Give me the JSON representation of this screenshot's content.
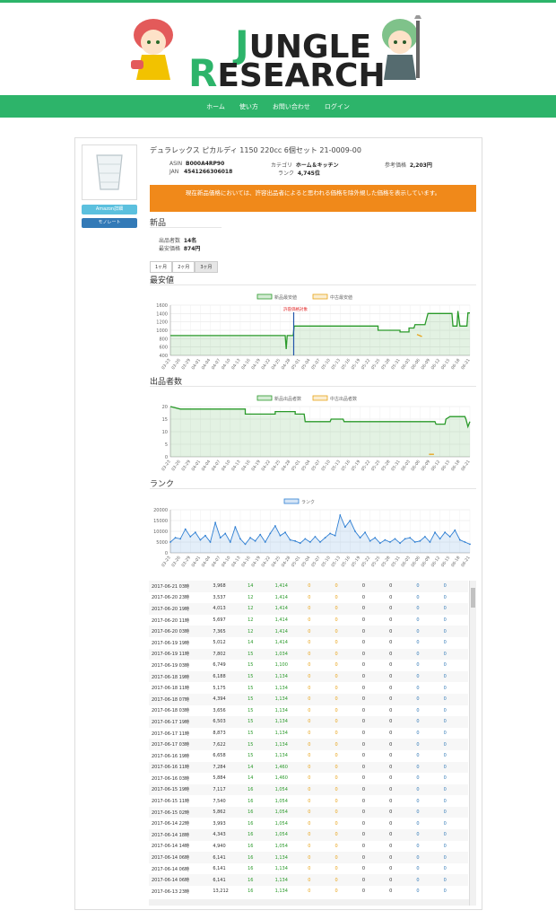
{
  "logo": {
    "line1_initial": "J",
    "line1_rest": "UNGLE",
    "line2_initial": "R",
    "line2_rest": "ESEARCH"
  },
  "nav": [
    "ホーム",
    "使い方",
    "お問い合わせ",
    "ログイン"
  ],
  "product": {
    "title": "デュラレックス ピカルディ 1150 220cc 6個セット 21-0009-00",
    "asin_label": "ASIN",
    "asin": "B000A4RP90",
    "jan_label": "JAN",
    "jan": "4541266306018",
    "category_label": "カテゴリ",
    "category": "ホーム＆キッチン",
    "rank_label": "ランク",
    "rank": "4,745位",
    "ref_price_label": "参考価格",
    "ref_price": "2,203円",
    "amazon_button": "Amazon詳細",
    "monorate_button": "モノレート"
  },
  "alert": "現在新品価格においては、許容出品者によると思われる価格を除外規した価格を表示しています。",
  "new_section": {
    "heading": "新品",
    "seller_count_label": "出品者数",
    "seller_count": "14名",
    "min_price_label": "最安価格",
    "min_price": "874円"
  },
  "tabs": [
    "1ヶ月",
    "2ヶ月",
    "3ヶ月"
  ],
  "active_tab": "3ヶ月",
  "sections": {
    "price": "最安値",
    "sellers": "出品者数",
    "rank": "ランク"
  },
  "colors": {
    "brand": "#2db46a",
    "alert": "#f0891a",
    "new": "#2a9a2a",
    "used": "#e8a317",
    "rank": "#2f7fd3"
  },
  "chart_data": [
    {
      "type": "line",
      "title": "",
      "legend": [
        "新品最安値",
        "中古最安値"
      ],
      "annotation": "許容価格対象",
      "yticks": [
        400,
        600,
        800,
        1000,
        1200,
        1400,
        1600
      ],
      "ylim": [
        400,
        1600
      ],
      "xticks": [
        "03-23",
        "03-26",
        "03-29",
        "04-01",
        "04-04",
        "04-07",
        "04-10",
        "04-13",
        "04-16",
        "04-19",
        "04-22",
        "04-25",
        "04-28",
        "05-01",
        "05-04",
        "05-07",
        "05-10",
        "05-13",
        "05-16",
        "05-19",
        "05-22",
        "05-25",
        "05-28",
        "05-31",
        "06-03",
        "06-06",
        "06-09",
        "06-12",
        "06-15",
        "06-18",
        "06-21"
      ],
      "series": [
        {
          "name": "新品最安値",
          "points": [
            [
              0,
              874
            ],
            [
              11.5,
              874
            ],
            [
              11.6,
              550
            ],
            [
              11.7,
              874
            ],
            [
              12.3,
              874
            ],
            [
              12.4,
              1100
            ],
            [
              19,
              1100
            ],
            [
              20.8,
              1100
            ],
            [
              20.8,
              1000
            ],
            [
              23,
              1000
            ],
            [
              23,
              960
            ],
            [
              23.9,
              960
            ],
            [
              23.9,
              1054
            ],
            [
              24.4,
              1054
            ],
            [
              24.5,
              1134
            ],
            [
              25.5,
              1134
            ],
            [
              25.8,
              1400
            ],
            [
              28.2,
              1400
            ],
            [
              28.3,
              1100
            ],
            [
              28.7,
              1100
            ],
            [
              28.8,
              1460
            ],
            [
              29,
              1100
            ],
            [
              29.7,
              1100
            ],
            [
              29.8,
              1414
            ],
            [
              30,
              1414
            ]
          ]
        },
        {
          "name": "中古最安値",
          "points": [
            [
              24.7,
              900
            ],
            [
              25.2,
              850
            ]
          ]
        }
      ]
    },
    {
      "type": "line",
      "title": "",
      "legend": [
        "新品出品者数",
        "中古出品者数"
      ],
      "yticks": [
        0,
        5,
        10,
        15,
        20
      ],
      "ylim": [
        0,
        20
      ],
      "series": [
        {
          "name": "新品出品者数",
          "points": [
            [
              0,
              20
            ],
            [
              1,
              19
            ],
            [
              7.5,
              19
            ],
            [
              7.5,
              17
            ],
            [
              10.5,
              17
            ],
            [
              10.5,
              18
            ],
            [
              12.5,
              18
            ],
            [
              12.5,
              17
            ],
            [
              13.4,
              17
            ],
            [
              13.5,
              14
            ],
            [
              16,
              14
            ],
            [
              16.1,
              15
            ],
            [
              17.3,
              15
            ],
            [
              17.4,
              14
            ],
            [
              26.5,
              14
            ],
            [
              26.6,
              13
            ],
            [
              27.5,
              13
            ],
            [
              27.6,
              15
            ],
            [
              28,
              16
            ],
            [
              29.5,
              16
            ],
            [
              29.6,
              15
            ],
            [
              29.8,
              12
            ],
            [
              30,
              14
            ]
          ]
        },
        {
          "name": "中古出品者数",
          "points": [
            [
              25.9,
              1
            ],
            [
              26.4,
              1
            ]
          ]
        }
      ]
    },
    {
      "type": "line",
      "title": "",
      "legend": [
        "ランク"
      ],
      "yticks": [
        0,
        5000,
        10000,
        15000,
        20000
      ],
      "ylim": [
        0,
        20000
      ],
      "series": [
        {
          "name": "ランク",
          "points": [
            [
              0,
              5000
            ],
            [
              0.5,
              7000
            ],
            [
              1,
              6500
            ],
            [
              1.5,
              11000
            ],
            [
              2,
              7500
            ],
            [
              2.5,
              9500
            ],
            [
              3,
              6000
            ],
            [
              3.5,
              8000
            ],
            [
              4,
              5000
            ],
            [
              4.5,
              14000
            ],
            [
              5,
              7000
            ],
            [
              5.5,
              9000
            ],
            [
              6,
              5000
            ],
            [
              6.5,
              12000
            ],
            [
              7,
              6500
            ],
            [
              7.5,
              4000
            ],
            [
              8,
              7000
            ],
            [
              8.5,
              5500
            ],
            [
              9,
              8500
            ],
            [
              9.5,
              5000
            ],
            [
              10,
              9000
            ],
            [
              10.5,
              12500
            ],
            [
              11,
              8000
            ],
            [
              11.5,
              9500
            ],
            [
              12,
              6000
            ],
            [
              12.5,
              5500
            ],
            [
              13,
              4500
            ],
            [
              13.5,
              6500
            ],
            [
              14,
              5000
            ],
            [
              14.5,
              7500
            ],
            [
              15,
              5000
            ],
            [
              15.5,
              7000
            ],
            [
              16,
              9000
            ],
            [
              16.5,
              8000
            ],
            [
              17,
              17500
            ],
            [
              17.5,
              12000
            ],
            [
              18,
              15000
            ],
            [
              18.5,
              10000
            ],
            [
              19,
              7000
            ],
            [
              19.5,
              9500
            ],
            [
              20,
              5500
            ],
            [
              20.5,
              7000
            ],
            [
              21,
              4500
            ],
            [
              21.5,
              6000
            ],
            [
              22,
              5000
            ],
            [
              22.5,
              6500
            ],
            [
              23,
              4500
            ],
            [
              23.5,
              6500
            ],
            [
              24,
              7000
            ],
            [
              24.5,
              5000
            ],
            [
              25,
              5500
            ],
            [
              25.5,
              7500
            ],
            [
              26,
              5000
            ],
            [
              26.5,
              9500
            ],
            [
              27,
              6500
            ],
            [
              27.5,
              9500
            ],
            [
              28,
              7500
            ],
            [
              28.5,
              10500
            ],
            [
              29,
              6000
            ],
            [
              29.5,
              5000
            ],
            [
              30,
              4000
            ]
          ]
        }
      ]
    }
  ],
  "table_rows": [
    [
      "2017-06-21 03時",
      "3,968",
      "14",
      "1,414",
      "0",
      "0",
      "0",
      "0",
      "0",
      "0"
    ],
    [
      "2017-06-20 23時",
      "3,537",
      "12",
      "1,414",
      "0",
      "0",
      "0",
      "0",
      "0",
      "0"
    ],
    [
      "2017-06-20 19時",
      "4,013",
      "12",
      "1,414",
      "0",
      "0",
      "0",
      "0",
      "0",
      "0"
    ],
    [
      "2017-06-20 11時",
      "5,697",
      "12",
      "1,414",
      "0",
      "0",
      "0",
      "0",
      "0",
      "0"
    ],
    [
      "2017-06-20 03時",
      "7,365",
      "12",
      "1,414",
      "0",
      "0",
      "0",
      "0",
      "0",
      "0"
    ],
    [
      "2017-06-19 19時",
      "5,012",
      "14",
      "1,414",
      "0",
      "0",
      "0",
      "0",
      "0",
      "0"
    ],
    [
      "2017-06-19 11時",
      "7,802",
      "15",
      "1,034",
      "0",
      "0",
      "0",
      "0",
      "0",
      "0"
    ],
    [
      "2017-06-19 03時",
      "6,749",
      "15",
      "1,100",
      "0",
      "0",
      "0",
      "0",
      "0",
      "0"
    ],
    [
      "2017-06-18 19時",
      "6,188",
      "15",
      "1,134",
      "0",
      "0",
      "0",
      "0",
      "0",
      "0"
    ],
    [
      "2017-06-18 11時",
      "5,175",
      "15",
      "1,134",
      "0",
      "0",
      "0",
      "0",
      "0",
      "0"
    ],
    [
      "2017-06-18 07時",
      "4,394",
      "15",
      "1,134",
      "0",
      "0",
      "0",
      "0",
      "0",
      "0"
    ],
    [
      "2017-06-18 03時",
      "3,656",
      "15",
      "1,134",
      "0",
      "0",
      "0",
      "0",
      "0",
      "0"
    ],
    [
      "2017-06-17 19時",
      "6,503",
      "15",
      "1,134",
      "0",
      "0",
      "0",
      "0",
      "0",
      "0"
    ],
    [
      "2017-06-17 11時",
      "8,873",
      "15",
      "1,134",
      "0",
      "0",
      "0",
      "0",
      "0",
      "0"
    ],
    [
      "2017-06-17 03時",
      "7,622",
      "15",
      "1,134",
      "0",
      "0",
      "0",
      "0",
      "0",
      "0"
    ],
    [
      "2017-06-16 19時",
      "6,658",
      "15",
      "1,134",
      "0",
      "0",
      "0",
      "0",
      "0",
      "0"
    ],
    [
      "2017-06-16 11時",
      "7,284",
      "14",
      "1,460",
      "0",
      "0",
      "0",
      "0",
      "0",
      "0"
    ],
    [
      "2017-06-16 03時",
      "5,884",
      "14",
      "1,460",
      "0",
      "0",
      "0",
      "0",
      "0",
      "0"
    ],
    [
      "2017-06-15 19時",
      "7,117",
      "16",
      "1,054",
      "0",
      "0",
      "0",
      "0",
      "0",
      "0"
    ],
    [
      "2017-06-15 11時",
      "7,540",
      "16",
      "1,054",
      "0",
      "0",
      "0",
      "0",
      "0",
      "0"
    ],
    [
      "2017-06-15 02時",
      "5,862",
      "16",
      "1,054",
      "0",
      "0",
      "0",
      "0",
      "0",
      "0"
    ],
    [
      "2017-06-14 22時",
      "3,993",
      "16",
      "1,054",
      "0",
      "0",
      "0",
      "0",
      "0",
      "0"
    ],
    [
      "2017-06-14 18時",
      "4,343",
      "16",
      "1,054",
      "0",
      "0",
      "0",
      "0",
      "0",
      "0"
    ],
    [
      "2017-06-14 14時",
      "4,940",
      "16",
      "1,054",
      "0",
      "0",
      "0",
      "0",
      "0",
      "0"
    ],
    [
      "2017-06-14 06時",
      "6,141",
      "16",
      "1,134",
      "0",
      "0",
      "0",
      "0",
      "0",
      "0"
    ],
    [
      "2017-06-14 06時",
      "6,141",
      "16",
      "1,134",
      "0",
      "0",
      "0",
      "0",
      "0",
      "0"
    ],
    [
      "2017-06-14 06時",
      "6,141",
      "16",
      "1,134",
      "0",
      "0",
      "0",
      "0",
      "0",
      "0"
    ],
    [
      "2017-06-13 23時",
      "13,212",
      "16",
      "1,134",
      "0",
      "0",
      "0",
      "0",
      "0",
      "0"
    ]
  ]
}
